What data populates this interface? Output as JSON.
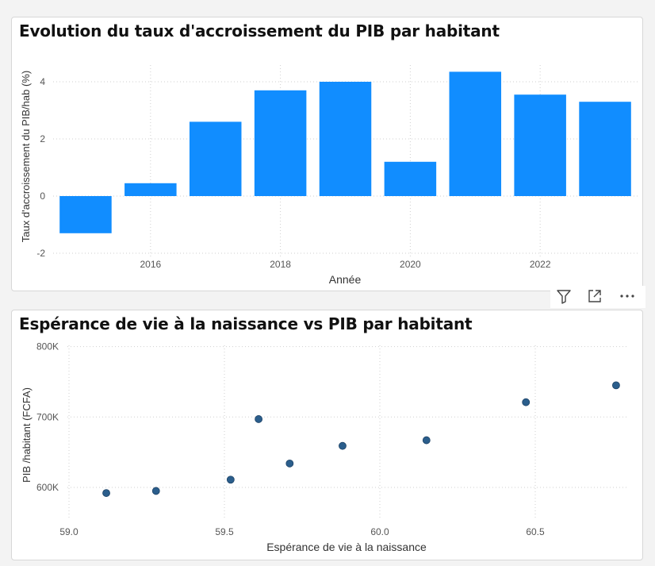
{
  "visual_header": {
    "filter_icon": "filter-icon",
    "focus_icon": "focus-mode-icon",
    "more_icon": "more-options-icon"
  },
  "colors": {
    "bar": "#118dff",
    "point": "#2b5e8c",
    "grid": "#cfcfcf",
    "axis_text": "#555555"
  },
  "chart_data": [
    {
      "type": "bar",
      "title": "Evolution du taux d'accroissement du PIB par habitant",
      "xlabel": "Année",
      "ylabel": "Taux d'accroissement du PIB/hab (%)",
      "x": [
        2015,
        2016,
        2017,
        2018,
        2019,
        2020,
        2021,
        2022,
        2023
      ],
      "values": [
        -1.3,
        0.45,
        2.6,
        3.7,
        4.0,
        1.2,
        4.35,
        3.55,
        3.3
      ],
      "xticks": [
        "2016",
        "2018",
        "2020",
        "2022"
      ],
      "yticks": [
        "-2",
        "0",
        "2",
        "4"
      ],
      "ylim": [
        -2,
        5
      ],
      "grid": true,
      "legend": "none"
    },
    {
      "type": "scatter",
      "title": "Espérance de vie à la naissance vs PIB par habitant",
      "xlabel": "Espérance de vie à la naissance",
      "ylabel": "PIB /habitant (FCFA)",
      "points": [
        {
          "x": 59.12,
          "y": 592000
        },
        {
          "x": 59.28,
          "y": 595000
        },
        {
          "x": 59.52,
          "y": 611000
        },
        {
          "x": 59.61,
          "y": 697000
        },
        {
          "x": 59.71,
          "y": 634000
        },
        {
          "x": 59.88,
          "y": 659000
        },
        {
          "x": 60.15,
          "y": 667000
        },
        {
          "x": 60.47,
          "y": 721000
        },
        {
          "x": 60.76,
          "y": 745000
        }
      ],
      "xticks": [
        "59.0",
        "59.5",
        "60.0",
        "60.5"
      ],
      "yticks": [
        "600K",
        "700K",
        "800K"
      ],
      "xlim": [
        59.0,
        60.8
      ],
      "ylim": [
        570000,
        800000
      ],
      "grid": true,
      "legend": "none"
    }
  ]
}
